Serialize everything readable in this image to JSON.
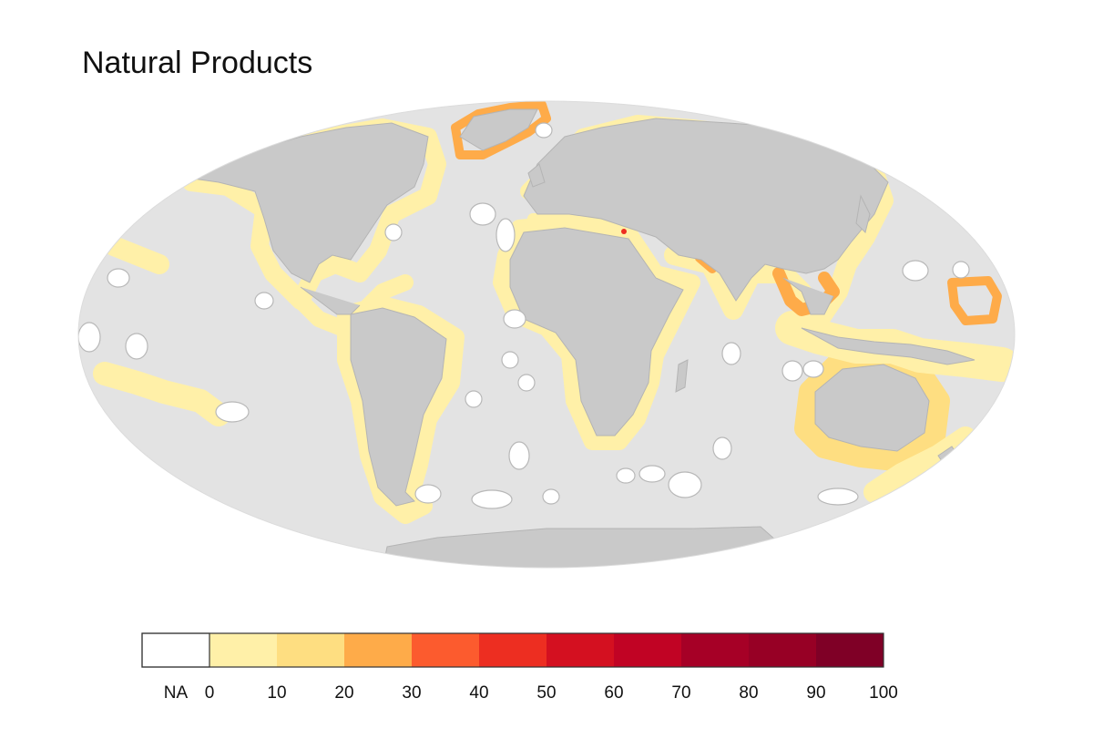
{
  "title": "Natural Products",
  "colors": {
    "ocean": "#e3e3e3",
    "land": "#c9c9c9",
    "na": "#ffffff"
  },
  "legend": {
    "na_label": "NA",
    "ticks": [
      "0",
      "10",
      "20",
      "30",
      "40",
      "50",
      "60",
      "70",
      "80",
      "90",
      "100"
    ],
    "bins": [
      {
        "from": 0,
        "to": 10,
        "color": "#fff0a8"
      },
      {
        "from": 10,
        "to": 20,
        "color": "#fede81"
      },
      {
        "from": 20,
        "to": 30,
        "color": "#feab49"
      },
      {
        "from": 30,
        "to": 40,
        "color": "#fc5b2e"
      },
      {
        "from": 40,
        "to": 50,
        "color": "#ed2e21"
      },
      {
        "from": 50,
        "to": 60,
        "color": "#d41020"
      },
      {
        "from": 60,
        "to": 70,
        "color": "#c10324"
      },
      {
        "from": 70,
        "to": 80,
        "color": "#a60026"
      },
      {
        "from": 80,
        "to": 90,
        "color": "#970025"
      },
      {
        "from": 90,
        "to": 100,
        "color": "#7f0026"
      }
    ]
  },
  "regions": [
    {
      "name": "Greenland",
      "value": 25
    },
    {
      "name": "Norway",
      "value": 25
    },
    {
      "name": "Black Sea",
      "value": 25
    },
    {
      "name": "Israel",
      "value": 45
    },
    {
      "name": "Pakistan",
      "value": 25
    },
    {
      "name": "Myanmar",
      "value": 25
    },
    {
      "name": "Thailand",
      "value": 25
    },
    {
      "name": "Vietnam",
      "value": 25
    },
    {
      "name": "Korea",
      "value": 25
    },
    {
      "name": "Northern Mariana Islands and Guam",
      "value": 25
    },
    {
      "name": "Australia",
      "value": 15
    },
    {
      "name": "West Africa",
      "value": 12
    },
    {
      "name": "Other coastal regions",
      "value": 5
    }
  ]
}
